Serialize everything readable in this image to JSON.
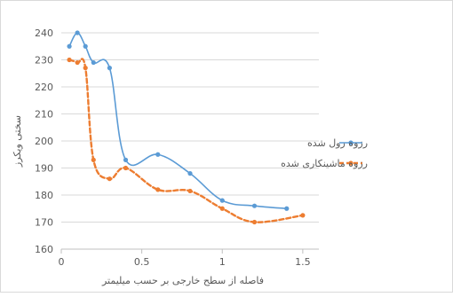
{
  "chart_data": {
    "type": "line",
    "title": "",
    "xlabel": "فاصله از سطح خارجی بر حسب میلیمتر",
    "ylabel": "سختی ویکرز",
    "xlim": [
      0,
      1.6
    ],
    "ylim": [
      160,
      240
    ],
    "xticks": [
      0,
      0.5,
      1,
      1.5
    ],
    "xtick_labels": [
      "0",
      "0.5",
      "1",
      "1.5"
    ],
    "yticks": [
      160,
      170,
      180,
      190,
      200,
      210,
      220,
      230,
      240
    ],
    "ytick_labels": [
      "160",
      "170",
      "180",
      "190",
      "200",
      "210",
      "220",
      "230",
      "240"
    ],
    "grid": "horizontal",
    "legend_position": "right",
    "series": [
      {
        "name": "رزوه رول شده",
        "color": "#5B9BD5",
        "style": "solid",
        "x": [
          0.05,
          0.1,
          0.15,
          0.2,
          0.3,
          0.4,
          0.6,
          0.8,
          1.0,
          1.2,
          1.4
        ],
        "y": [
          235,
          240,
          235,
          229,
          227,
          193,
          195,
          188,
          178,
          176,
          175
        ]
      },
      {
        "name": "رزوه ماشینکاری شده",
        "color": "#ED7D31",
        "style": "dashed",
        "x": [
          0.05,
          0.1,
          0.15,
          0.2,
          0.3,
          0.4,
          0.6,
          0.8,
          1.0,
          1.2,
          1.5
        ],
        "y": [
          230,
          229,
          227,
          193,
          186,
          190,
          182,
          181.5,
          175,
          170,
          172.5
        ]
      }
    ]
  }
}
